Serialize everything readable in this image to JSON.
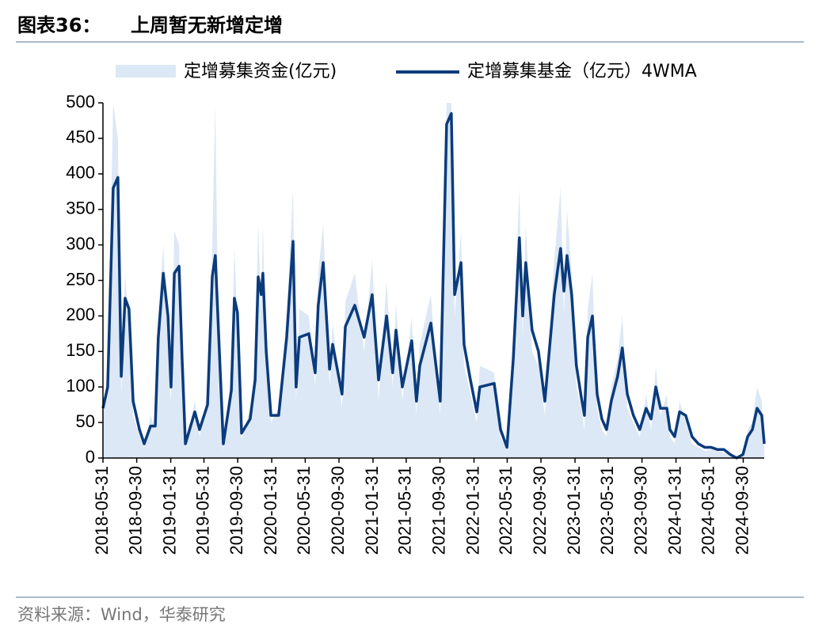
{
  "chart_data": {
    "type": "line_area",
    "label": "图表36：",
    "title": "上周暂无新增定增",
    "source": "资料来源：Wind，华泰研究",
    "x": [
      "2018-05-31",
      "2018-06-17",
      "2018-07-07",
      "2018-07-24",
      "2018-08-05",
      "2018-08-19",
      "2018-09-02",
      "2018-09-17",
      "2018-10-10",
      "2018-10-27",
      "2018-11-19",
      "2018-12-06",
      "2018-12-17",
      "2019-01-04",
      "2019-01-21",
      "2019-02-01",
      "2019-02-13",
      "2019-03-02",
      "2019-03-13",
      "2019-03-25",
      "2019-04-28",
      "2019-05-15",
      "2019-06-13",
      "2019-06-30",
      "2019-07-11",
      "2019-07-23",
      "2019-08-09",
      "2019-09-07",
      "2019-09-18",
      "2019-09-29",
      "2019-10-14",
      "2019-11-14",
      "2019-12-02",
      "2019-12-13",
      "2019-12-24",
      "2019-12-30",
      "2020-01-11",
      "2020-01-28",
      "2020-02-25",
      "2020-03-25",
      "2020-04-17",
      "2020-04-28",
      "2020-05-10",
      "2020-06-13",
      "2020-07-06",
      "2020-07-17",
      "2020-08-04",
      "2020-08-27",
      "2020-09-07",
      "2020-10-11",
      "2020-10-23",
      "2020-11-26",
      "2020-12-30",
      "2021-01-28",
      "2021-02-20",
      "2021-03-21",
      "2021-04-12",
      "2021-04-24",
      "2021-05-17",
      "2021-06-20",
      "2021-07-07",
      "2021-07-19",
      "2021-08-28",
      "2021-10-01",
      "2021-10-24",
      "2021-11-10",
      "2021-11-22",
      "2021-12-15",
      "2021-12-26",
      "2022-01-18",
      "2022-02-10",
      "2022-02-21",
      "2022-04-14",
      "2022-05-07",
      "2022-05-30",
      "2022-06-22",
      "2022-07-14",
      "2022-07-26",
      "2022-08-06",
      "2022-08-29",
      "2022-09-21",
      "2022-10-14",
      "2022-11-17",
      "2022-12-10",
      "2022-12-22",
      "2023-01-02",
      "2023-01-19",
      "2023-02-05",
      "2023-02-23",
      "2023-03-06",
      "2023-03-18",
      "2023-04-04",
      "2023-04-21",
      "2023-05-08",
      "2023-05-25",
      "2023-06-11",
      "2023-07-04",
      "2023-07-21",
      "2023-08-08",
      "2023-08-30",
      "2023-09-22",
      "2023-10-15",
      "2023-11-02",
      "2023-11-19",
      "2023-12-06",
      "2023-12-29",
      "2024-01-09",
      "2024-01-26",
      "2024-02-13",
      "2024-03-06",
      "2024-03-29",
      "2024-04-21",
      "2024-05-14",
      "2024-06-06",
      "2024-06-29",
      "2024-07-22",
      "2024-08-14",
      "2024-09-06",
      "2024-09-29",
      "2024-10-16",
      "2024-11-02",
      "2024-11-19",
      "2024-12-06",
      "2024-12-15"
    ],
    "series": [
      {
        "name": "定增募集资金(亿元)",
        "kind": "area",
        "color": "#dce8f5",
        "values": [
          60,
          120,
          500,
          450,
          90,
          260,
          180,
          60,
          30,
          15,
          60,
          40,
          200,
          300,
          150,
          80,
          320,
          300,
          110,
          15,
          80,
          30,
          90,
          300,
          500,
          140,
          10,
          120,
          300,
          180,
          25,
          70,
          130,
          330,
          200,
          330,
          120,
          50,
          70,
          200,
          380,
          80,
          210,
          200,
          100,
          260,
          330,
          100,
          190,
          70,
          220,
          260,
          150,
          280,
          80,
          250,
          100,
          220,
          80,
          200,
          60,
          160,
          230,
          60,
          500,
          500,
          200,
          320,
          130,
          90,
          50,
          130,
          120,
          30,
          10,
          170,
          380,
          170,
          330,
          150,
          130,
          60,
          280,
          380,
          200,
          350,
          260,
          100,
          70,
          40,
          210,
          260,
          70,
          40,
          30,
          100,
          140,
          200,
          70,
          50,
          30,
          90,
          40,
          130,
          60,
          90,
          30,
          20,
          80,
          50,
          20,
          15,
          10,
          12,
          10,
          8,
          3,
          0,
          4,
          40,
          50,
          100,
          80,
          15
        ]
      },
      {
        "name": "定增募集基金（亿元）4WMA",
        "kind": "line",
        "color": "#0b3b7c",
        "values": [
          70,
          100,
          380,
          395,
          115,
          225,
          210,
          80,
          40,
          20,
          45,
          45,
          170,
          260,
          200,
          100,
          260,
          270,
          140,
          20,
          65,
          40,
          75,
          255,
          285,
          175,
          20,
          95,
          225,
          205,
          35,
          55,
          110,
          255,
          230,
          260,
          150,
          60,
          60,
          170,
          305,
          100,
          170,
          175,
          120,
          215,
          275,
          125,
          160,
          90,
          185,
          215,
          170,
          230,
          110,
          200,
          120,
          180,
          100,
          165,
          80,
          130,
          190,
          80,
          470,
          485,
          230,
          275,
          160,
          110,
          65,
          100,
          105,
          40,
          15,
          140,
          310,
          200,
          275,
          180,
          150,
          80,
          230,
          295,
          235,
          285,
          230,
          130,
          85,
          60,
          170,
          200,
          90,
          55,
          40,
          80,
          115,
          155,
          90,
          60,
          40,
          70,
          55,
          100,
          70,
          70,
          40,
          30,
          65,
          60,
          30,
          20,
          15,
          15,
          12,
          12,
          5,
          0,
          5,
          30,
          40,
          70,
          60,
          20
        ]
      }
    ],
    "xlim": [
      "2018-05-31",
      "2024-12-15"
    ],
    "xticks": [
      "2018-05-31",
      "2018-09-30",
      "2019-01-31",
      "2019-05-31",
      "2019-09-30",
      "2020-01-31",
      "2020-05-31",
      "2020-09-30",
      "2021-01-31",
      "2021-05-31",
      "2021-09-30",
      "2022-01-31",
      "2022-05-31",
      "2022-09-30",
      "2023-01-31",
      "2023-05-31",
      "2023-09-30",
      "2024-01-31",
      "2024-05-31",
      "2024-09-30"
    ],
    "ylim": [
      0,
      500
    ],
    "yticks": [
      0,
      50,
      100,
      150,
      200,
      250,
      300,
      350,
      400,
      450,
      500
    ]
  }
}
